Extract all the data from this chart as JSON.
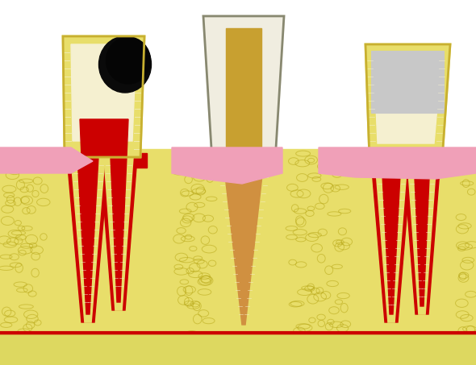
{
  "bg_color": "#ffffff",
  "bone_color": "#e8de6a",
  "gum_color": "#f0a0b8",
  "red_c": "#cc0000",
  "dentin_c": "#e8de6a",
  "dentin_inner": "#f5f0d0",
  "tooth_outline": "#c8b030",
  "decay_c": "#0a0a0a",
  "crown2_c": "#f0ede0",
  "gold_c": "#c8a030",
  "fill_c": "#c8c8c8",
  "canal_c": "#d09040",
  "root_c": "#e0d860",
  "spongy_c": "#b8a818",
  "shelf_c": "#ddd860"
}
